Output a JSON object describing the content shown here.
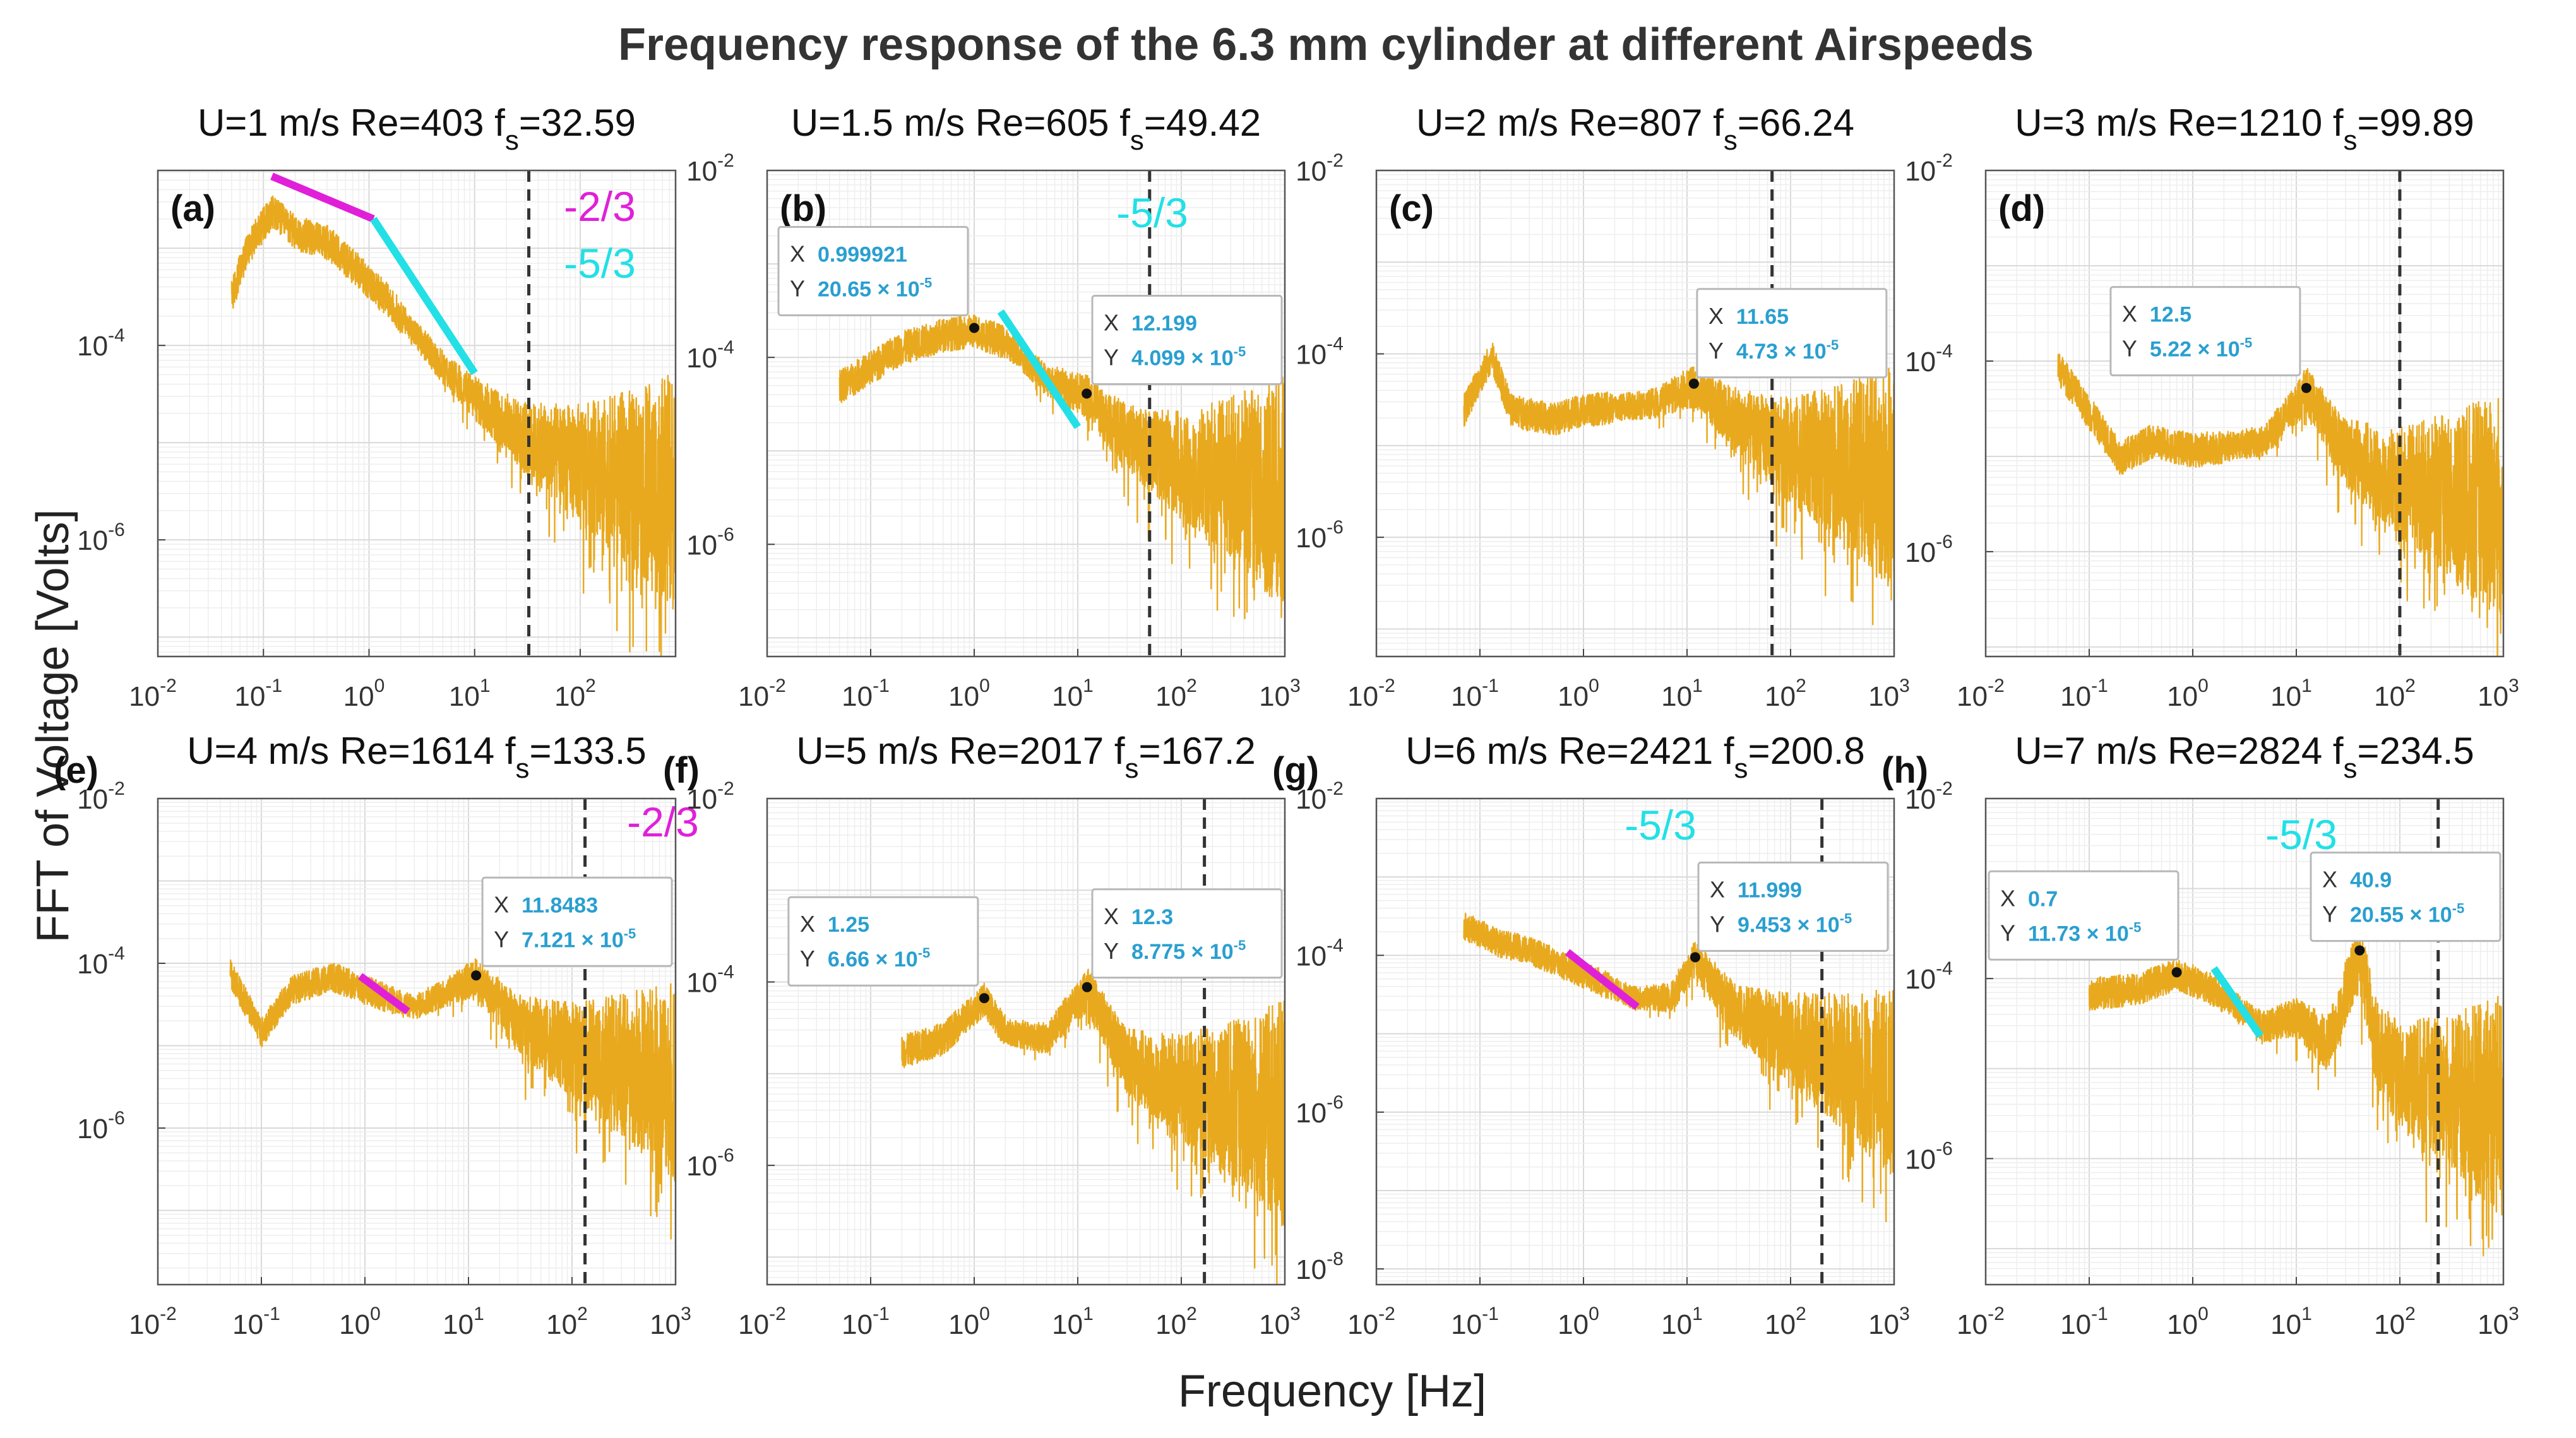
{
  "figure": {
    "title": "Frequency response of the 6.3 mm cylinder at different Airspeeds",
    "xlabel": "Frequency [Hz]",
    "ylabel": "FFT of Voltage [Volts]"
  },
  "colors": {
    "signal": "#e8a91e",
    "magenta": "#e020d8",
    "cyan": "#22e0e6",
    "datatip_value": "#2a9fd0",
    "dashed": "#333333"
  },
  "chart_data": [
    {
      "type": "line",
      "label": "(a)",
      "panel_title_parts": [
        "U=1 m/s  Re=403  f",
        "s",
        "=32.59"
      ],
      "U_mps": 1,
      "Re": 403,
      "fs": 32.59,
      "xlim": [
        0.01,
        800
      ],
      "ylim_exp": [
        -7.2,
        -2.2
      ],
      "xticks_exp": [
        -2,
        -1,
        0,
        1,
        2
      ],
      "yticks_exp": [
        -4,
        -6
      ],
      "curve": [
        [
          0.05,
          0.00033
        ],
        [
          0.07,
          0.001
        ],
        [
          0.12,
          0.0025
        ],
        [
          0.2,
          0.0015
        ],
        [
          0.4,
          0.0012
        ],
        [
          0.8,
          0.0006
        ],
        [
          1.5,
          0.0003
        ],
        [
          3,
          0.00012
        ],
        [
          6,
          5e-05
        ],
        [
          10,
          3e-05
        ],
        [
          30,
          1.2e-05
        ],
        [
          100,
          7e-06
        ],
        [
          800,
          4e-06
        ]
      ],
      "slopes": [
        {
          "label": "-2/3",
          "color": "magenta",
          "x": [
            0.12,
            1.1
          ],
          "y": [
            0.0055,
            0.002
          ]
        },
        {
          "label": "-5/3",
          "color": "cyan",
          "x": [
            1.1,
            10
          ],
          "y": [
            0.002,
            5.2e-05
          ]
        }
      ],
      "datatips": []
    },
    {
      "type": "line",
      "label": "(b)",
      "panel_title_parts": [
        "U=1.5 m/s  Re=605  f",
        "s",
        "=49.42"
      ],
      "U_mps": 1.5,
      "Re": 605,
      "fs": 49.42,
      "xlim": [
        0.01,
        1000
      ],
      "ylim_exp": [
        -7.2,
        -2
      ],
      "xticks_exp": [
        -2,
        -1,
        0,
        1,
        2,
        3
      ],
      "yticks_exp": [
        -2,
        -4,
        -6
      ],
      "curve": [
        [
          0.05,
          5e-05
        ],
        [
          0.1,
          8e-05
        ],
        [
          0.2,
          0.00013
        ],
        [
          0.5,
          0.00018
        ],
        [
          1,
          0.0002
        ],
        [
          2,
          0.00015
        ],
        [
          5,
          6e-05
        ],
        [
          12,
          4e-05
        ],
        [
          30,
          1.5e-05
        ],
        [
          100,
          8e-06
        ],
        [
          1000,
          5e-06
        ]
      ],
      "slopes": [
        {
          "label": "-5/3",
          "color": "cyan",
          "x": [
            1.8,
            10
          ],
          "y": [
            0.00031
          ],
          "y2": 1.8e-05
        }
      ],
      "datatips": [
        {
          "X": "0.999921",
          "Y": "20.65 × 10",
          "Yexp": "-5",
          "x": 0.999921,
          "y": 0.0002065,
          "side": "left"
        },
        {
          "X": "12.199",
          "Y": "4.099 × 10",
          "Yexp": "-5",
          "x": 12.199,
          "y": 4.099e-05,
          "side": "right"
        }
      ]
    },
    {
      "type": "line",
      "label": "(c)",
      "panel_title_parts": [
        "U=2 m/s  Re=807  f",
        "s",
        "=66.24"
      ],
      "U_mps": 2,
      "Re": 807,
      "fs": 66.24,
      "xlim": [
        0.01,
        1000
      ],
      "ylim_exp": [
        -7.3,
        -2
      ],
      "xticks_exp": [
        -2,
        -1,
        0,
        1,
        2,
        3
      ],
      "yticks_exp": [
        -2,
        -4,
        -6
      ],
      "curve": [
        [
          0.07,
          2.5e-05
        ],
        [
          0.13,
          0.0001
        ],
        [
          0.2,
          2.5e-05
        ],
        [
          0.5,
          2e-05
        ],
        [
          1,
          2.5e-05
        ],
        [
          5,
          3e-05
        ],
        [
          11.65,
          4.73e-05
        ],
        [
          30,
          2e-05
        ],
        [
          100,
          1e-05
        ],
        [
          1000,
          6e-06
        ]
      ],
      "slopes": [],
      "datatips": [
        {
          "X": "11.65",
          "Y": "4.73 × 10",
          "Yexp": "-5",
          "x": 11.65,
          "y": 4.73e-05,
          "side": "above"
        }
      ]
    },
    {
      "type": "line",
      "label": "(d)",
      "panel_title_parts": [
        "U=3 m/s  Re=1210  f",
        "s",
        "=99.89"
      ],
      "U_mps": 3,
      "Re": 1210,
      "fs": 99.89,
      "xlim": [
        0.01,
        1000
      ],
      "ylim_exp": [
        -7.1,
        -2
      ],
      "xticks_exp": [
        -2,
        -1,
        0,
        1,
        2,
        3
      ],
      "yticks_exp": [
        -2,
        -4,
        -6
      ],
      "curve": [
        [
          0.05,
          9e-05
        ],
        [
          0.1,
          3e-05
        ],
        [
          0.2,
          1e-05
        ],
        [
          0.4,
          1.5e-05
        ],
        [
          1,
          1.2e-05
        ],
        [
          5,
          1.5e-05
        ],
        [
          12.5,
          5.22e-05
        ],
        [
          30,
          1.2e-05
        ],
        [
          100,
          6e-06
        ],
        [
          1000,
          4e-06
        ]
      ],
      "slopes": [],
      "datatips": [
        {
          "X": "12.5",
          "Y": "5.22 × 10",
          "Yexp": "-5",
          "x": 12.5,
          "y": 5.22e-05,
          "side": "left"
        }
      ]
    },
    {
      "type": "line",
      "label": "(e)",
      "panel_title_parts": [
        "U=4 m/s    Re=1614   f",
        "s",
        "=133.5"
      ],
      "U_mps": 4,
      "Re": 1614,
      "fs": 133.5,
      "xlim": [
        0.01,
        1000
      ],
      "ylim_exp": [
        -7.9,
        -2
      ],
      "xticks_exp": [
        -2,
        -1,
        0,
        1,
        2,
        3
      ],
      "yticks_exp": [
        -2,
        -4,
        -6
      ],
      "curve": [
        [
          0.05,
          8e-05
        ],
        [
          0.1,
          1.5e-05
        ],
        [
          0.2,
          5e-05
        ],
        [
          0.5,
          7e-05
        ],
        [
          1,
          5e-05
        ],
        [
          3,
          3e-05
        ],
        [
          11.85,
          7.121e-05
        ],
        [
          30,
          2e-05
        ],
        [
          100,
          1e-05
        ],
        [
          1000,
          5e-06
        ]
      ],
      "slopes": [
        {
          "label": "-2/3",
          "color": "magenta",
          "x": [
            0.9,
            2.6
          ],
          "y": [
            7e-05,
            2.6e-05
          ]
        }
      ],
      "datatips": [
        {
          "X": "11.8483",
          "Y": "7.121 × 10",
          "Yexp": "-5",
          "x": 11.8483,
          "y": 7.121e-05,
          "side": "right"
        }
      ]
    },
    {
      "type": "line",
      "label": "(f)",
      "panel_title_parts": [
        "U=5 m/s    Re=2017   f",
        "s",
        "=167.2"
      ],
      "U_mps": 5,
      "Re": 2017,
      "fs": 167.2,
      "xlim": [
        0.01,
        1000
      ],
      "ylim_exp": [
        -7.3,
        -2
      ],
      "xticks_exp": [
        -2,
        -1,
        0,
        1,
        2,
        3
      ],
      "yticks_exp": [
        -2,
        -4,
        -6
      ],
      "curve": [
        [
          0.2,
          1.8e-05
        ],
        [
          0.5,
          2.5e-05
        ],
        [
          1.25,
          6.66e-05
        ],
        [
          2,
          3e-05
        ],
        [
          5,
          2.5e-05
        ],
        [
          12.3,
          8.775e-05
        ],
        [
          30,
          1.5e-05
        ],
        [
          100,
          8e-06
        ],
        [
          1000,
          5e-06
        ]
      ],
      "slopes": [],
      "datatips": [
        {
          "X": "1.25",
          "Y": "6.66 × 10",
          "Yexp": "-5",
          "x": 1.25,
          "y": 6.66e-05,
          "side": "left"
        },
        {
          "X": "12.3",
          "Y": "8.775 × 10",
          "Yexp": "-5",
          "x": 12.3,
          "y": 8.775e-05,
          "side": "right"
        }
      ]
    },
    {
      "type": "line",
      "label": "(g)",
      "panel_title_parts": [
        "U=6 m/s    Re=2421    f",
        "s",
        "=200.8"
      ],
      "U_mps": 6,
      "Re": 2421,
      "fs": 200.8,
      "xlim": [
        0.01,
        1000
      ],
      "ylim_exp": [
        -8.2,
        -2
      ],
      "xticks_exp": [
        -2,
        -1,
        0,
        1,
        2,
        3
      ],
      "yticks_exp": [
        -2,
        -4,
        -6,
        -8
      ],
      "curve": [
        [
          0.07,
          0.00025
        ],
        [
          0.15,
          0.00015
        ],
        [
          0.3,
          0.00012
        ],
        [
          1,
          6e-05
        ],
        [
          3,
          3e-05
        ],
        [
          7,
          3e-05
        ],
        [
          12,
          9.453e-05
        ],
        [
          30,
          2e-05
        ],
        [
          100,
          1e-05
        ],
        [
          1000,
          3e-06
        ]
      ],
      "slopes": [
        {
          "label": "-5/3",
          "color": "magenta",
          "x": [
            0.7,
            3.3
          ],
          "y": [
            0.00011,
            2.2e-05
          ]
        }
      ],
      "slope_label_color": "cyan",
      "datatips": [
        {
          "X": "11.999",
          "Y": "9.453 × 10",
          "Yexp": "-5",
          "x": 11.999,
          "y": 9.453e-05,
          "side": "above"
        }
      ]
    },
    {
      "type": "line",
      "label": "(h)",
      "panel_title_parts": [
        "U=7 m/s    Re=2824   f",
        "s",
        "=234.5"
      ],
      "U_mps": 7,
      "Re": 2824,
      "fs": 234.5,
      "xlim": [
        0.01,
        1000
      ],
      "ylim_exp": [
        -7.4,
        -2
      ],
      "xticks_exp": [
        -2,
        -1,
        0,
        1,
        2,
        3
      ],
      "yticks_exp": [
        -2,
        -4,
        -6
      ],
      "curve": [
        [
          0.1,
          7e-05
        ],
        [
          0.3,
          8e-05
        ],
        [
          0.7,
          0.0001173
        ],
        [
          1.5,
          8e-05
        ],
        [
          5,
          3e-05
        ],
        [
          10,
          4e-05
        ],
        [
          20,
          2e-05
        ],
        [
          40.9,
          0.0002055
        ],
        [
          60,
          2e-05
        ],
        [
          100,
          1e-05
        ],
        [
          1000,
          5e-06
        ]
      ],
      "slopes": [
        {
          "label": "-5/3",
          "color": "cyan",
          "x": [
            1.6,
            4.5
          ],
          "y": [
            0.00013,
            2.3e-05
          ]
        }
      ],
      "datatips": [
        {
          "X": "0.7",
          "Y": "11.73 × 10",
          "Yexp": "-5",
          "x": 0.7,
          "y": 0.0001173,
          "side": "left"
        },
        {
          "X": "40.9",
          "Y": "20.55 × 10",
          "Yexp": "-5",
          "x": 40.9,
          "y": 0.0002055,
          "side": "right"
        }
      ]
    }
  ]
}
